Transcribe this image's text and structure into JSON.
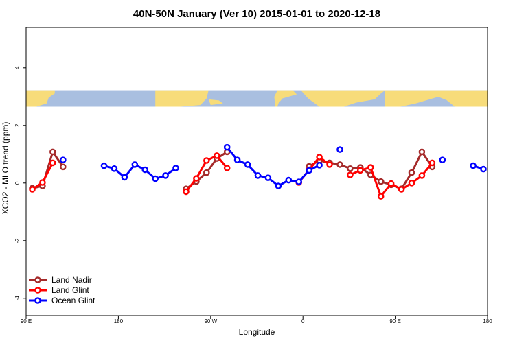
{
  "chart_data": {
    "type": "line",
    "title": "40N-50N January (Ver 10)   2015-01-01 to 2020-12-18",
    "xlabel": "Longitude",
    "ylabel": "XCO2 - MLO trend (ppm)",
    "xlim": [
      90,
      540
    ],
    "ylim": [
      -4.6,
      5.4
    ],
    "x_ticks": [
      {
        "value": 90,
        "label": "90 E"
      },
      {
        "value": 180,
        "label": "180"
      },
      {
        "value": 270,
        "label": "90 W"
      },
      {
        "value": 360,
        "label": "0"
      },
      {
        "value": 450,
        "label": "90 E"
      },
      {
        "value": 540,
        "label": "180"
      }
    ],
    "y_ticks": [
      {
        "value": -4,
        "label": "-4"
      },
      {
        "value": -2,
        "label": "-2"
      },
      {
        "value": 0,
        "label": "0"
      },
      {
        "value": 2,
        "label": "2"
      },
      {
        "value": 4,
        "label": "4"
      }
    ],
    "map_band": {
      "y_range": [
        2.65,
        3.22
      ],
      "ocean_color": "#a9bfe0",
      "land_color": "#f7dc7a"
    },
    "legend": {
      "position": "bottom-left"
    },
    "series": [
      {
        "name": "Land Nadir",
        "color": "#a52a2a",
        "segments": [
          [
            [
              96,
              -0.18
            ],
            [
              106,
              -0.1
            ],
            [
              116,
              1.08
            ],
            [
              126,
              0.56
            ]
          ],
          [
            [
              246,
              -0.2
            ],
            [
              256,
              0.05
            ],
            [
              266,
              0.36
            ],
            [
              276,
              0.85
            ],
            [
              286,
              1.08
            ]
          ],
          [
            [
              366,
              0.58
            ],
            [
              376,
              0.78
            ],
            [
              386,
              0.7
            ],
            [
              396,
              0.64
            ],
            [
              406,
              0.5
            ],
            [
              416,
              0.54
            ],
            [
              426,
              0.28
            ],
            [
              436,
              0.05
            ],
            [
              446,
              -0.06
            ],
            [
              456,
              -0.2
            ],
            [
              466,
              0.36
            ],
            [
              476,
              1.08
            ],
            [
              486,
              0.56
            ]
          ]
        ]
      },
      {
        "name": "Land Glint",
        "color": "#ff0000",
        "segments": [
          [
            [
              96,
              -0.22
            ],
            [
              106,
              0.02
            ],
            [
              116,
              0.7
            ]
          ],
          [
            [
              246,
              -0.3
            ],
            [
              256,
              0.16
            ],
            [
              266,
              0.78
            ],
            [
              276,
              0.95
            ],
            [
              286,
              0.52
            ]
          ],
          [
            [
              356,
              0.02
            ],
            [
              366,
              0.46
            ],
            [
              376,
              0.9
            ],
            [
              386,
              0.64
            ]
          ],
          [
            [
              406,
              0.28
            ],
            [
              416,
              0.44
            ],
            [
              426,
              0.54
            ],
            [
              436,
              -0.46
            ],
            [
              446,
              -0.02
            ],
            [
              456,
              -0.22
            ],
            [
              466,
              0.0
            ],
            [
              476,
              0.26
            ],
            [
              486,
              0.7
            ]
          ]
        ]
      },
      {
        "name": "Ocean Glint",
        "color": "#0000ff",
        "segments": [
          [
            [
              126,
              0.8
            ]
          ],
          [
            [
              166,
              0.6
            ],
            [
              176,
              0.5
            ],
            [
              186,
              0.2
            ],
            [
              196,
              0.64
            ],
            [
              206,
              0.46
            ],
            [
              216,
              0.15
            ],
            [
              226,
              0.26
            ],
            [
              236,
              0.52
            ]
          ],
          [
            [
              286,
              1.24
            ],
            [
              296,
              0.8
            ],
            [
              306,
              0.64
            ],
            [
              316,
              0.26
            ],
            [
              326,
              0.18
            ],
            [
              336,
              -0.1
            ],
            [
              346,
              0.1
            ],
            [
              356,
              0.04
            ],
            [
              366,
              0.44
            ],
            [
              376,
              0.62
            ]
          ],
          [
            [
              396,
              1.16
            ]
          ],
          [
            [
              496,
              0.8
            ]
          ],
          [
            [
              526,
              0.6
            ],
            [
              536,
              0.48
            ]
          ]
        ]
      }
    ]
  }
}
